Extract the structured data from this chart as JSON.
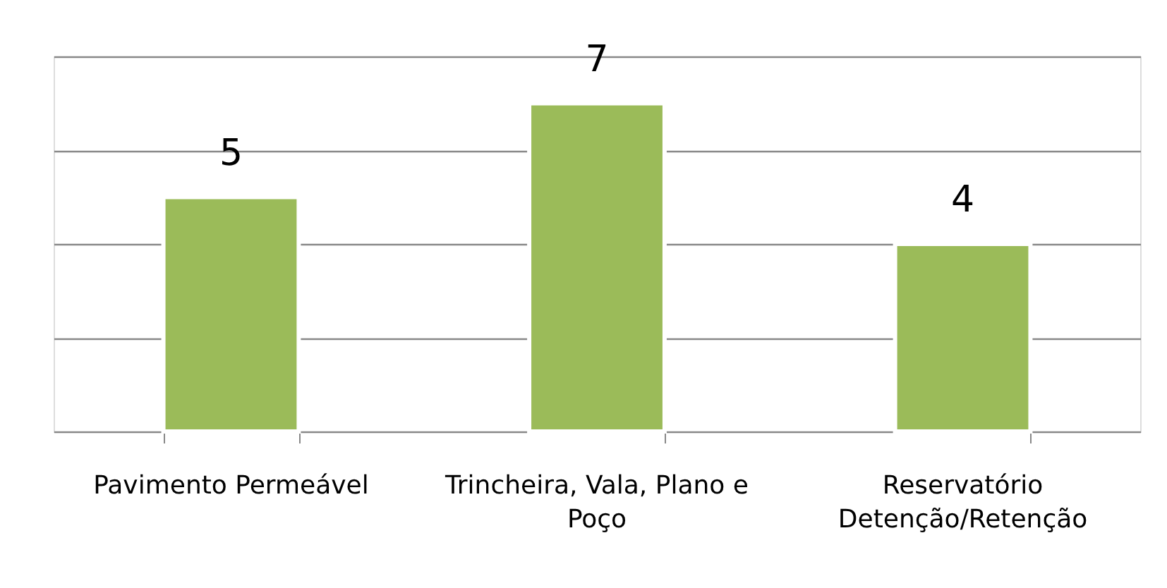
{
  "chart_data": {
    "type": "bar",
    "categories": [
      "Pavimento Permeável",
      "Trincheira, Vala, Plano e Poço",
      "Reservatório Detenção/Retenção"
    ],
    "values": [
      5,
      7,
      4
    ],
    "color": "#9bbb59",
    "ylim": [
      0,
      8
    ],
    "grid": "y",
    "data_labels": true,
    "tick_labels": "x"
  }
}
